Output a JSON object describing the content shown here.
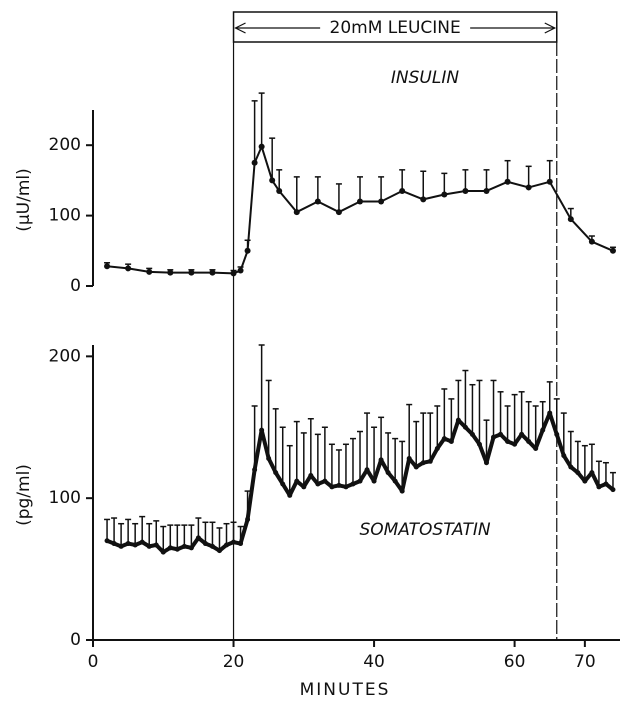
{
  "chart_data": [
    {
      "type": "line",
      "label": "INSULIN",
      "ylabel": "(μU/ml)",
      "bracket": {
        "label": "20mM LEUCINE",
        "x": [
          20,
          66
        ]
      },
      "x": [
        2,
        5,
        8,
        11,
        14,
        17,
        20,
        21,
        22,
        23,
        24,
        25.5,
        26.5,
        29,
        32,
        35,
        38,
        41,
        44,
        47,
        50,
        53,
        56,
        59,
        62,
        65,
        68,
        71,
        74
      ],
      "values": [
        28,
        25,
        20,
        19,
        19,
        19,
        18,
        22,
        50,
        175,
        198,
        150,
        135,
        105,
        120,
        105,
        120,
        120,
        135,
        123,
        130,
        135,
        135,
        148,
        140,
        148,
        95,
        63,
        50
      ],
      "errors": [
        5,
        6,
        5,
        4,
        4,
        4,
        4,
        5,
        15,
        88,
        76,
        60,
        30,
        50,
        35,
        40,
        35,
        35,
        30,
        40,
        30,
        30,
        30,
        30,
        30,
        30,
        15,
        8,
        5
      ],
      "color": "#111111",
      "xlim": [
        0,
        75
      ],
      "ylim": [
        0,
        250
      ],
      "yticks": [
        0,
        100,
        200
      ]
    },
    {
      "type": "line",
      "label": "SOMATOSTATIN",
      "ylabel": "(pg/ml)",
      "xlabel": "MINUTES",
      "x": [
        2,
        3,
        4,
        5,
        6,
        7,
        8,
        9,
        10,
        11,
        12,
        13,
        14,
        15,
        16,
        17,
        18,
        19,
        20,
        21,
        22,
        23,
        24,
        25,
        26,
        27,
        28,
        29,
        30,
        31,
        32,
        33,
        34,
        35,
        36,
        37,
        38,
        39,
        40,
        41,
        42,
        43,
        44,
        45,
        46,
        47,
        48,
        49,
        50,
        51,
        52,
        53,
        54,
        55,
        56,
        57,
        58,
        59,
        60,
        61,
        62,
        63,
        64,
        65,
        66,
        67,
        68,
        69,
        70,
        71,
        72,
        73,
        74
      ],
      "values": [
        70,
        68,
        66,
        68,
        67,
        69,
        66,
        67,
        62,
        65,
        64,
        66,
        65,
        72,
        68,
        66,
        63,
        67,
        69,
        68,
        85,
        120,
        148,
        128,
        118,
        110,
        102,
        112,
        108,
        116,
        110,
        112,
        108,
        109,
        108,
        110,
        112,
        120,
        112,
        127,
        118,
        112,
        105,
        128,
        122,
        125,
        126,
        135,
        142,
        140,
        155,
        150,
        145,
        138,
        125,
        143,
        145,
        140,
        138,
        145,
        140,
        135,
        148,
        160,
        145,
        130,
        122,
        118,
        112,
        118,
        108,
        110,
        106
      ],
      "errors": [
        15,
        18,
        16,
        17,
        15,
        18,
        16,
        17,
        18,
        16,
        17,
        15,
        16,
        14,
        15,
        17,
        16,
        15,
        14,
        12,
        20,
        45,
        60,
        55,
        45,
        40,
        35,
        42,
        38,
        40,
        35,
        38,
        30,
        25,
        30,
        32,
        35,
        40,
        38,
        30,
        28,
        30,
        35,
        38,
        32,
        35,
        34,
        30,
        35,
        30,
        28,
        40,
        35,
        45,
        30,
        40,
        30,
        25,
        35,
        30,
        28,
        30,
        20,
        22,
        25,
        30,
        25,
        22,
        25,
        20,
        18,
        15,
        12
      ],
      "color": "#111111",
      "xlim": [
        0,
        75
      ],
      "xticks": [
        0,
        20,
        40,
        60,
        70
      ],
      "ylim": [
        0,
        208
      ],
      "yticks": [
        0,
        100,
        200
      ]
    }
  ]
}
